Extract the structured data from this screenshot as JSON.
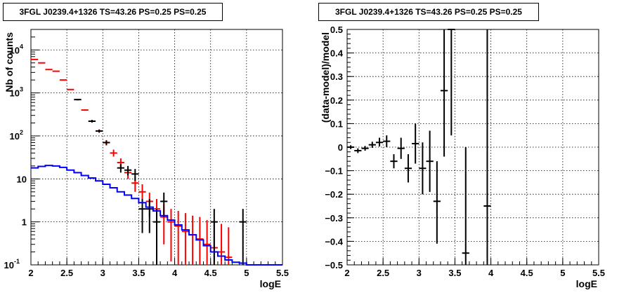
{
  "chart_data": [
    {
      "type": "line",
      "title": "3FGL J0239.4+1326 TS=43.26 PS=0.25 PS=0.25",
      "xlabel": "logE",
      "ylabel": "Nb of counts",
      "xlim": [
        2,
        5.5
      ],
      "ylim": [
        0.1,
        30000
      ],
      "yscale": "log",
      "grid": true,
      "xticks": [
        "2",
        "2.5",
        "3",
        "3.5",
        "4",
        "4.5",
        "5",
        "5.5"
      ],
      "yticks": [
        {
          "value": 0.1,
          "label": "10",
          "sup": "-1"
        },
        {
          "value": 1,
          "label": "1",
          "sup": ""
        },
        {
          "value": 10,
          "label": "10",
          "sup": ""
        },
        {
          "value": 100,
          "label": "10",
          "sup": "2"
        },
        {
          "value": 1000,
          "label": "10",
          "sup": "3"
        },
        {
          "value": 10000,
          "label": "10",
          "sup": "4"
        }
      ],
      "series": [
        {
          "color": "#ff0000",
          "style": "errorbar",
          "points": [
            {
              "x": 2.05,
              "y": 6000,
              "lo": 5900,
              "hi": 6100
            },
            {
              "x": 2.15,
              "y": 5000,
              "lo": 4900,
              "hi": 5100
            },
            {
              "x": 2.25,
              "y": 3500,
              "lo": 3450,
              "hi": 3550
            },
            {
              "x": 2.35,
              "y": 3200,
              "lo": 3150,
              "hi": 3250
            },
            {
              "x": 2.45,
              "y": 2000,
              "lo": 1960,
              "hi": 2040
            },
            {
              "x": 2.55,
              "y": 1200,
              "lo": 1170,
              "hi": 1230
            },
            {
              "x": 2.65,
              "y": 700,
              "lo": 680,
              "hi": 720
            },
            {
              "x": 2.75,
              "y": 400,
              "lo": 385,
              "hi": 415
            },
            {
              "x": 2.85,
              "y": 220,
              "lo": 205,
              "hi": 235
            },
            {
              "x": 2.95,
              "y": 130,
              "lo": 118,
              "hi": 142
            },
            {
              "x": 3.05,
              "y": 70,
              "lo": 60,
              "hi": 80
            },
            {
              "x": 3.15,
              "y": 40,
              "lo": 33,
              "hi": 48
            },
            {
              "x": 3.25,
              "y": 24,
              "lo": 19,
              "hi": 30
            },
            {
              "x": 3.35,
              "y": 14,
              "lo": 10,
              "hi": 18
            },
            {
              "x": 3.45,
              "y": 8,
              "lo": 5,
              "hi": 11
            },
            {
              "x": 3.55,
              "y": 5,
              "lo": 2.8,
              "hi": 7.5
            },
            {
              "x": 3.65,
              "y": 3,
              "lo": 1.3,
              "hi": 4.8
            },
            {
              "x": 3.75,
              "y": 2,
              "lo": 0.6,
              "hi": 3.4
            },
            {
              "x": 3.85,
              "y": 1.3,
              "lo": 0.3,
              "hi": 2.5
            },
            {
              "x": 3.95,
              "y": 1,
              "lo": 0.12,
              "hi": 2.0
            },
            {
              "x": 4.05,
              "y": 0.8,
              "lo": 0.1,
              "hi": 1.8
            },
            {
              "x": 4.15,
              "y": 0.6,
              "lo": 0.1,
              "hi": 1.6
            },
            {
              "x": 4.25,
              "y": 0.5,
              "lo": 0.1,
              "hi": 1.4
            },
            {
              "x": 4.35,
              "y": 0.4,
              "lo": 0.1,
              "hi": 1.3
            },
            {
              "x": 4.45,
              "y": 0.3,
              "lo": 0.1,
              "hi": 1.1
            },
            {
              "x": 4.55,
              "y": 0.25,
              "lo": 0.1,
              "hi": 1.0
            },
            {
              "x": 4.65,
              "y": 0.2,
              "lo": 0.1,
              "hi": 0.9
            },
            {
              "x": 4.75,
              "y": 0.15,
              "lo": 0.1,
              "hi": 0.75
            }
          ]
        },
        {
          "color": "#000000",
          "style": "errorbar",
          "points": [
            {
              "x": 2.65,
              "y": 700,
              "lo": 670,
              "hi": 730
            },
            {
              "x": 2.85,
              "y": 220,
              "lo": 205,
              "hi": 235
            },
            {
              "x": 2.95,
              "y": 130,
              "lo": 120,
              "hi": 140
            },
            {
              "x": 3.05,
              "y": 70,
              "lo": 62,
              "hi": 78
            },
            {
              "x": 3.25,
              "y": 18,
              "lo": 14,
              "hi": 22
            },
            {
              "x": 3.35,
              "y": 16,
              "lo": 12,
              "hi": 20
            },
            {
              "x": 3.45,
              "y": 13,
              "lo": 9,
              "hi": 17
            },
            {
              "x": 3.55,
              "y": 2,
              "lo": 0.55,
              "hi": 3.4
            },
            {
              "x": 3.65,
              "y": 2,
              "lo": 0.55,
              "hi": 3.4
            },
            {
              "x": 3.75,
              "y": 1,
              "lo": 0.1,
              "hi": 2.0
            },
            {
              "x": 3.85,
              "y": 3,
              "lo": 1.3,
              "hi": 4.8
            },
            {
              "x": 4.55,
              "y": 1,
              "lo": 0.1,
              "hi": 2.0
            },
            {
              "x": 4.95,
              "y": 1,
              "lo": 0.1,
              "hi": 2.0
            }
          ]
        },
        {
          "color": "#0000ff",
          "style": "step",
          "binwidth": 0.1,
          "points": [
            {
              "x": 2.05,
              "y": 18
            },
            {
              "x": 2.15,
              "y": 19.5
            },
            {
              "x": 2.25,
              "y": 20.5
            },
            {
              "x": 2.35,
              "y": 20
            },
            {
              "x": 2.45,
              "y": 18.5
            },
            {
              "x": 2.55,
              "y": 16
            },
            {
              "x": 2.65,
              "y": 14
            },
            {
              "x": 2.75,
              "y": 12
            },
            {
              "x": 2.85,
              "y": 10.5
            },
            {
              "x": 2.95,
              "y": 9
            },
            {
              "x": 3.05,
              "y": 7.5
            },
            {
              "x": 3.15,
              "y": 6.2
            },
            {
              "x": 3.25,
              "y": 5
            },
            {
              "x": 3.35,
              "y": 4.2
            },
            {
              "x": 3.45,
              "y": 3.5
            },
            {
              "x": 3.55,
              "y": 2.8
            },
            {
              "x": 3.65,
              "y": 2.2
            },
            {
              "x": 3.75,
              "y": 1.8
            },
            {
              "x": 3.85,
              "y": 1.4
            },
            {
              "x": 3.95,
              "y": 1.1
            },
            {
              "x": 4.05,
              "y": 0.85
            },
            {
              "x": 4.15,
              "y": 0.65
            },
            {
              "x": 4.25,
              "y": 0.5
            },
            {
              "x": 4.35,
              "y": 0.38
            },
            {
              "x": 4.45,
              "y": 0.28
            },
            {
              "x": 4.55,
              "y": 0.2
            },
            {
              "x": 4.65,
              "y": 0.16
            },
            {
              "x": 4.75,
              "y": 0.13
            },
            {
              "x": 4.85,
              "y": 0.115
            },
            {
              "x": 4.95,
              "y": 0.11
            },
            {
              "x": 5.05,
              "y": 0.1
            },
            {
              "x": 5.15,
              "y": 0.1
            },
            {
              "x": 5.25,
              "y": 0.1
            },
            {
              "x": 5.35,
              "y": 0.1
            },
            {
              "x": 5.45,
              "y": 0.1
            }
          ]
        }
      ]
    },
    {
      "type": "scatter",
      "title": "3FGL J0239.4+1326 TS=43.26 PS=0.25 PS=0.25",
      "xlabel": "logE",
      "ylabel": "(data-model)/model",
      "xlim": [
        2,
        5.5
      ],
      "ylim": [
        -0.5,
        0.5
      ],
      "grid": true,
      "xticks": [
        "2",
        "2.5",
        "3",
        "3.5",
        "4",
        "4.5",
        "5",
        "5.5"
      ],
      "yticks": [
        "0.5",
        "0.4",
        "0.3",
        "0.2",
        "0.1",
        "0",
        "−0.1",
        "−0.2",
        "−0.3",
        "−0.4",
        "−0.5"
      ],
      "series": [
        {
          "color": "#000000",
          "style": "errorbar",
          "points": [
            {
              "x": 2.05,
              "y": 0.0,
              "lo": -0.008,
              "hi": 0.008
            },
            {
              "x": 2.15,
              "y": -0.015,
              "lo": -0.025,
              "hi": -0.005
            },
            {
              "x": 2.25,
              "y": -0.005,
              "lo": -0.015,
              "hi": 0.005
            },
            {
              "x": 2.35,
              "y": 0.01,
              "lo": -0.003,
              "hi": 0.023
            },
            {
              "x": 2.45,
              "y": 0.02,
              "lo": 0.003,
              "hi": 0.04
            },
            {
              "x": 2.55,
              "y": 0.025,
              "lo": 0.0,
              "hi": 0.05
            },
            {
              "x": 2.65,
              "y": -0.06,
              "lo": -0.09,
              "hi": -0.03
            },
            {
              "x": 2.75,
              "y": -0.005,
              "lo": -0.05,
              "hi": 0.04
            },
            {
              "x": 2.85,
              "y": -0.09,
              "lo": -0.15,
              "hi": -0.03
            },
            {
              "x": 2.95,
              "y": 0.015,
              "lo": -0.07,
              "hi": 0.1
            },
            {
              "x": 3.05,
              "y": -0.09,
              "lo": -0.2,
              "hi": 0.02
            },
            {
              "x": 3.15,
              "y": -0.06,
              "lo": -0.19,
              "hi": 0.07
            },
            {
              "x": 3.25,
              "y": -0.23,
              "lo": -0.41,
              "hi": -0.06
            },
            {
              "x": 3.35,
              "y": 0.24,
              "lo": -0.04,
              "hi": 0.5
            },
            {
              "x": 3.45,
              "y": 0.5,
              "lo": 0.05,
              "hi": 0.5
            },
            {
              "x": 3.65,
              "y": -0.45,
              "lo": -0.5,
              "hi": 0.0
            },
            {
              "x": 3.95,
              "y": -0.25,
              "lo": -0.5,
              "hi": 0.5
            }
          ]
        }
      ]
    }
  ]
}
